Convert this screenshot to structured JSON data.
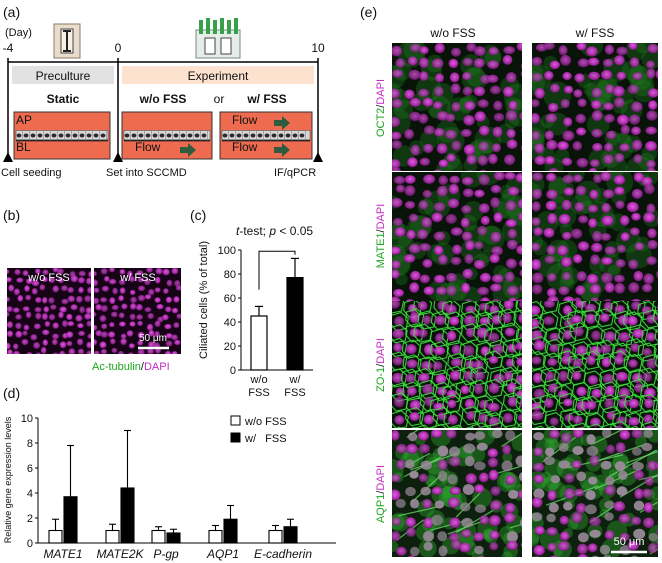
{
  "panel_a": {
    "label": "(a)",
    "day_label": "(Day)",
    "ticks": [
      "-4",
      "0",
      "10"
    ],
    "preculture": "Preculture",
    "experiment": "Experiment",
    "static": "Static",
    "wo_fss": "w/o FSS",
    "or": "or",
    "w_fss": "w/ FSS",
    "ap": "AP",
    "bl": "BL",
    "flow": "Flow",
    "cell_seeding": "Cell seeding",
    "set_into": "Set into SCCMD",
    "ifqpcr": "IF/qPCR"
  },
  "panel_b": {
    "label": "(b)",
    "col1": "w/o FSS",
    "col2": "w/ FSS",
    "scale": "50 μm",
    "stain_green": "Ac-tubulin",
    "stain_slash": "/",
    "stain_magenta": "DAPI"
  },
  "panel_c": {
    "label": "(c)",
    "ttest_prefix": "t",
    "ttest_mid": "-test; ",
    "ttest_p": "p",
    "ttest_suffix": " < 0.05",
    "ylabel": "Ciliated cells (% of total)",
    "cat1_l1": "w/o",
    "cat1_l2": "FSS",
    "cat2_l1": "w/",
    "cat2_l2": "FSS",
    "chart_data": {
      "type": "bar",
      "categories": [
        "w/o FSS",
        "w/ FSS"
      ],
      "values": [
        45,
        77
      ],
      "errors": [
        8,
        16
      ],
      "ylim": [
        0,
        100
      ],
      "yticks": [
        "0",
        "20",
        "40",
        "60",
        "80",
        "100"
      ],
      "fills": [
        "#ffffff",
        "#000000"
      ]
    }
  },
  "panel_d": {
    "label": "(d)",
    "ylabel": "Relative gene expression levels",
    "legend_wo": "w/o FSS",
    "legend_w": "w/   FSS",
    "chart_data": {
      "type": "bar",
      "categories": [
        "MATE1",
        "MATE2K",
        "P-gp",
        "AQP1",
        "E-cadherin"
      ],
      "ylim": [
        0,
        10
      ],
      "yticks": [
        "0",
        "2",
        "4",
        "6",
        "8",
        "10"
      ],
      "series": [
        {
          "values": [
            1.0,
            1.0,
            1.0,
            1.0,
            1.0
          ],
          "errors": [
            0.9,
            0.5,
            0.3,
            0.4,
            0.4
          ],
          "fill": "#ffffff"
        },
        {
          "values": [
            3.7,
            4.4,
            0.8,
            1.9,
            1.3
          ],
          "errors": [
            4.1,
            4.6,
            0.3,
            1.1,
            0.6
          ],
          "fill": "#000000"
        }
      ]
    }
  },
  "panel_e": {
    "label": "(e)",
    "col1": "w/o FSS",
    "col2": "w/ FSS",
    "rows": [
      {
        "green": "OCT2",
        "slash": "/",
        "magenta": "DAPI"
      },
      {
        "green": "MATE1",
        "slash": "/",
        "magenta": "DAPI"
      },
      {
        "green": "ZO-1",
        "slash": "/",
        "magenta": "DAPI"
      },
      {
        "green": "AQP1",
        "slash": "/",
        "magenta": "DAPI"
      }
    ],
    "scale": "50 μm"
  },
  "colors": {
    "magenta": "#c42bc4",
    "green": "#1da51d",
    "salmon": "#ef6b50",
    "grey_box": "#e2e2e2",
    "peach_box": "#fde3cf",
    "flow_arrow": "#2f5b3f"
  }
}
